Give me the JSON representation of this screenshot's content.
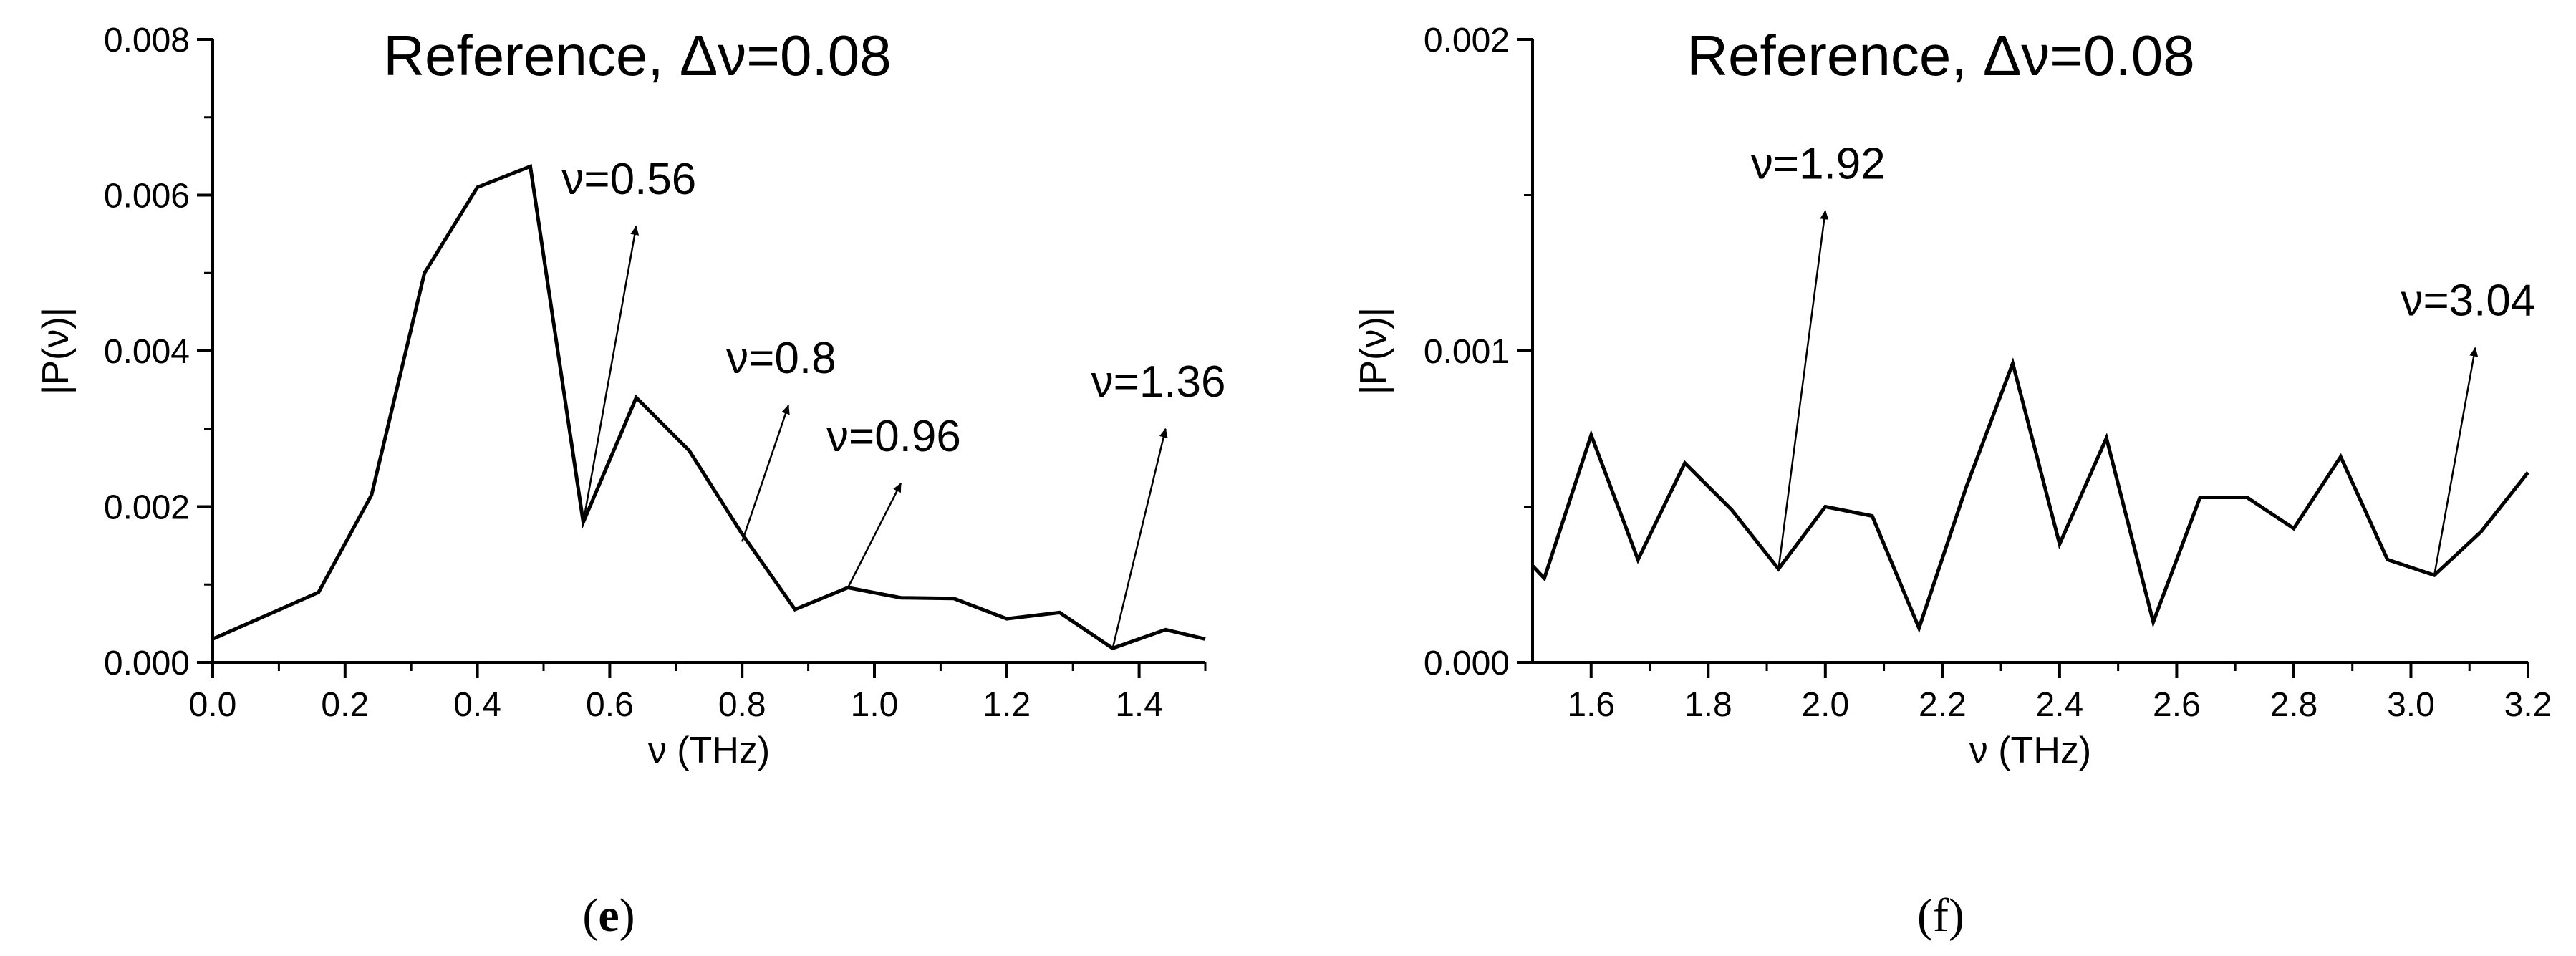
{
  "chart_data": [
    {
      "type": "line",
      "title": "Reference, Δν=0.08",
      "xlabel": "ν (THz)",
      "ylabel": "|P(ν)|",
      "xlim": [
        0.0,
        1.5
      ],
      "ylim": [
        0.0,
        0.008
      ],
      "x_ticks": [
        "0.0",
        "0.2",
        "0.4",
        "0.6",
        "0.8",
        "1.0",
        "1.2",
        "1.4"
      ],
      "y_ticks": [
        "0.000",
        "0.002",
        "0.004",
        "0.006",
        "0.008"
      ],
      "grid": false,
      "panel_label": "e",
      "series": [
        {
          "x": [
            0.0,
            0.08,
            0.16,
            0.24,
            0.32,
            0.4,
            0.48,
            0.56,
            0.64,
            0.72,
            0.8,
            0.88,
            0.96,
            1.04,
            1.12,
            1.2,
            1.28,
            1.36,
            1.44,
            1.5
          ],
          "values": [
            0.0003,
            0.0006,
            0.0009,
            0.00215,
            0.005,
            0.0061,
            0.00637,
            0.0018,
            0.0034,
            0.00272,
            0.00165,
            0.00068,
            0.00096,
            0.00083,
            0.00082,
            0.00056,
            0.00064,
            0.00018,
            0.00042,
            0.0003
          ]
        }
      ],
      "annotations": [
        {
          "text": "ν=0.56",
          "x": 0.56,
          "y": 0.0018,
          "text_x": 0.64,
          "text_y": 0.0056
        },
        {
          "text": "ν=0.8",
          "x": 0.8,
          "y": 0.00155,
          "text_x": 0.87,
          "text_y": 0.0033
        },
        {
          "text": "ν=0.96",
          "x": 0.96,
          "y": 0.00096,
          "text_x": 1.04,
          "text_y": 0.0023
        },
        {
          "text": "ν=1.36",
          "x": 1.36,
          "y": 0.00018,
          "text_x": 1.44,
          "text_y": 0.003
        }
      ]
    },
    {
      "type": "line",
      "title": "Reference, Δν=0.08",
      "xlabel": "ν (THz)",
      "ylabel": "|P(ν)|",
      "xlim": [
        1.5,
        3.2
      ],
      "ylim": [
        0.0,
        0.002
      ],
      "x_ticks": [
        "1.6",
        "1.8",
        "2.0",
        "2.2",
        "2.4",
        "2.6",
        "2.8",
        "3.0",
        "3.2"
      ],
      "y_ticks": [
        "0.000",
        "0.001",
        "0.002"
      ],
      "grid": false,
      "panel_label": "f",
      "series": [
        {
          "x": [
            1.5,
            1.52,
            1.6,
            1.68,
            1.76,
            1.84,
            1.92,
            2.0,
            2.08,
            2.16,
            2.24,
            2.32,
            2.4,
            2.48,
            2.56,
            2.64,
            2.72,
            2.8,
            2.88,
            2.96,
            3.04,
            3.12,
            3.2
          ],
          "values": [
            0.00031,
            0.00027,
            0.00073,
            0.00033,
            0.00064,
            0.00049,
            0.0003,
            0.0005,
            0.00047,
            0.00011,
            0.00056,
            0.00096,
            0.00038,
            0.00072,
            0.00013,
            0.00053,
            0.00053,
            0.00043,
            0.00066,
            0.00033,
            0.00028,
            0.00042,
            0.00061
          ]
        }
      ],
      "annotations": [
        {
          "text": "ν=1.92",
          "x": 1.92,
          "y": 0.0003,
          "text_x": 2.0,
          "text_y": 0.00145
        },
        {
          "text": "ν=3.04",
          "x": 3.04,
          "y": 0.00028,
          "text_x": 3.11,
          "text_y": 0.00101
        }
      ]
    }
  ]
}
